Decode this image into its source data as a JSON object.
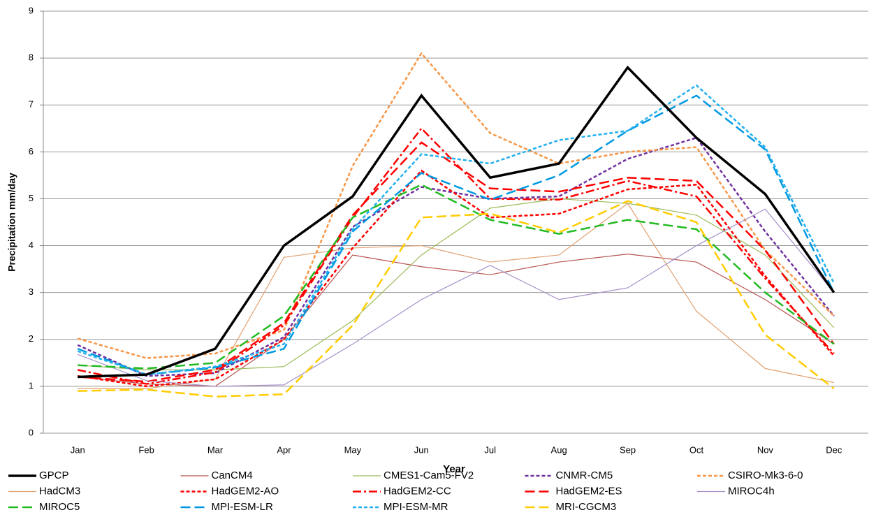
{
  "chart_data": {
    "type": "line",
    "x_label": "Year",
    "y_label": "Precipitation mm/day",
    "categories": [
      "Jan",
      "Feb",
      "Mar",
      "Apr",
      "May",
      "Jun",
      "Jul",
      "Aug",
      "Sep",
      "Oct",
      "Nov",
      "Dec"
    ],
    "ylim": [
      0,
      9
    ],
    "yticks": [
      0,
      1,
      2,
      3,
      4,
      5,
      6,
      7,
      8,
      9
    ],
    "grid": true,
    "legend": "bottom",
    "series": [
      {
        "name": "GPCP",
        "color": "#000000",
        "style": "solid",
        "width": 3.5,
        "values": [
          1.2,
          1.25,
          1.8,
          4.0,
          5.05,
          7.2,
          5.45,
          5.75,
          7.8,
          6.3,
          5.1,
          3.0
        ]
      },
      {
        "name": "CanCM4",
        "color": "#b85450",
        "style": "solid",
        "width": 1.2,
        "values": [
          1.2,
          1.05,
          1.0,
          2.0,
          3.8,
          3.55,
          3.38,
          3.65,
          3.82,
          3.65,
          2.85,
          1.9
        ]
      },
      {
        "name": "CMES1-Cam5-FV2",
        "color": "#9bbb59",
        "style": "solid",
        "width": 1.2,
        "values": [
          1.45,
          1.35,
          1.35,
          1.42,
          2.4,
          3.8,
          4.8,
          5.0,
          4.9,
          4.65,
          3.8,
          2.25
        ]
      },
      {
        "name": "CNMR-CM5",
        "color": "#7030a0",
        "style": "dash",
        "width": 2.5,
        "values": [
          1.88,
          1.22,
          1.28,
          2.05,
          4.4,
          5.25,
          5.0,
          5.05,
          5.85,
          6.3,
          4.3,
          2.5
        ]
      },
      {
        "name": "CSIRO-Mk3-6-0",
        "color": "#f79646",
        "style": "dash",
        "width": 2.5,
        "values": [
          2.02,
          1.6,
          1.7,
          2.2,
          5.7,
          8.1,
          6.4,
          5.75,
          6.0,
          6.1,
          3.9,
          2.5
        ]
      },
      {
        "name": "HadCM3",
        "color": "#e0a070",
        "style": "solid",
        "width": 1.2,
        "values": [
          0.95,
          0.95,
          1.15,
          3.75,
          3.95,
          4.0,
          3.65,
          3.8,
          4.9,
          2.6,
          1.38,
          1.08
        ]
      },
      {
        "name": "HadGEM2-AO",
        "color": "#ff0000",
        "style": "dash",
        "width": 2.5,
        "values": [
          1.22,
          1.0,
          1.15,
          2.0,
          3.95,
          5.6,
          4.6,
          4.68,
          5.2,
          5.3,
          3.35,
          1.65
        ]
      },
      {
        "name": "HadGEM2-CC",
        "color": "#ff0000",
        "style": "dash-dot",
        "width": 2.5,
        "values": [
          1.35,
          1.05,
          1.3,
          2.3,
          4.6,
          6.5,
          5.0,
          4.98,
          5.38,
          5.05,
          3.3,
          1.7
        ]
      },
      {
        "name": "HadGEM2-ES",
        "color": "#ff0000",
        "style": "long-dash",
        "width": 2.5,
        "values": [
          1.2,
          1.1,
          1.35,
          2.35,
          4.65,
          6.2,
          5.22,
          5.15,
          5.45,
          5.38,
          3.9,
          1.9
        ]
      },
      {
        "name": "MIROC4h",
        "color": "#a58fc8",
        "style": "solid",
        "width": 1.2,
        "values": [
          1.68,
          1.12,
          1.0,
          1.03,
          1.9,
          2.85,
          3.58,
          2.85,
          3.1,
          4.0,
          4.78,
          3.0
        ]
      },
      {
        "name": "MIROC5",
        "color": "#22bb22",
        "style": "long-dash",
        "width": 2.5,
        "values": [
          1.45,
          1.38,
          1.5,
          2.5,
          4.6,
          5.3,
          4.55,
          4.25,
          4.55,
          4.35,
          3.0,
          1.9
        ]
      },
      {
        "name": "MPI-ESM-LR",
        "color": "#0099e0",
        "style": "long-dash",
        "width": 2.5,
        "values": [
          1.8,
          1.25,
          1.4,
          1.8,
          4.3,
          5.55,
          4.98,
          5.5,
          6.45,
          7.2,
          6.05,
          3.0
        ]
      },
      {
        "name": "MPI-ESM-MR",
        "color": "#22b0f0",
        "style": "dash",
        "width": 2.5,
        "values": [
          1.75,
          1.25,
          1.42,
          1.9,
          4.35,
          5.95,
          5.75,
          6.25,
          6.45,
          7.42,
          6.1,
          3.2
        ]
      },
      {
        "name": "MRI-CGCM3",
        "color": "#ffcc00",
        "style": "long-dash",
        "width": 2.5,
        "values": [
          0.9,
          0.93,
          0.78,
          0.83,
          2.3,
          4.6,
          4.68,
          4.28,
          4.95,
          4.5,
          2.1,
          0.95
        ]
      }
    ]
  }
}
